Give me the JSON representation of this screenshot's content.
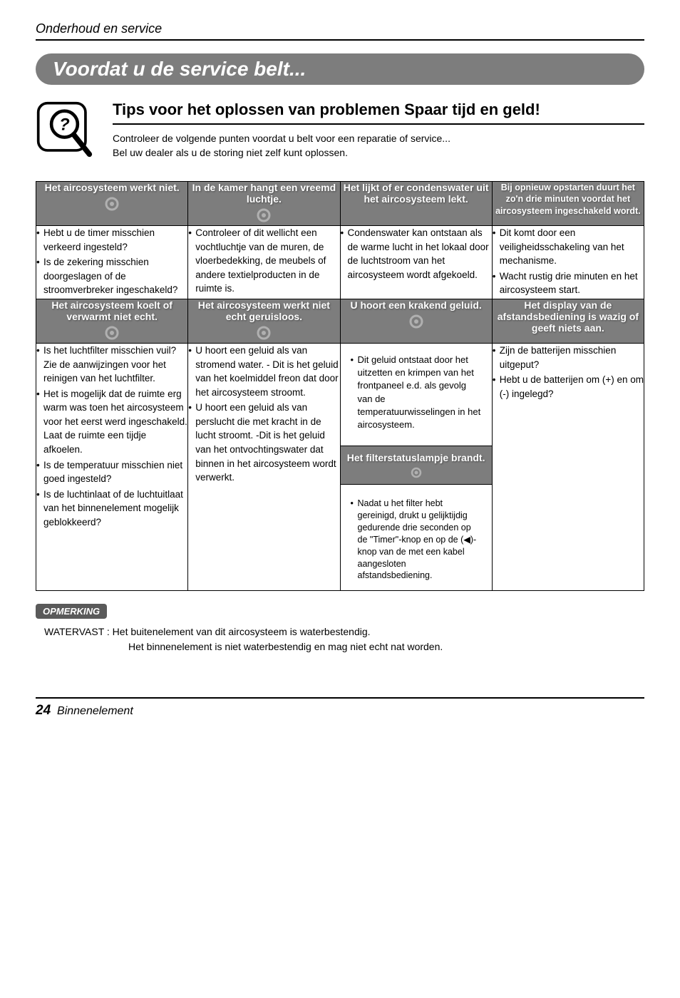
{
  "page_header": "Onderhoud en service",
  "banner": "Voordat u de service belt...",
  "tips_title": "Tips voor het oplossen van problemen Spaar tijd en geld!",
  "tips_desc_l1": "Controleer de volgende punten voordat u belt voor een reparatie of service...",
  "tips_desc_l2": "Bel uw dealer als u de storing niet zelf kunt oplossen.",
  "colors": {
    "header_bg": "#7d7d7d",
    "header_text": "#ffffff",
    "border": "#000000",
    "note_bg": "#5a5a5a"
  },
  "row1_headers": [
    "Het aircosysteem werkt niet.",
    "In de kamer hangt een vreemd luchtje.",
    "Het lijkt of er condenswater uit het aircosysteem lekt.",
    "Bij opnieuw opstarten duurt het zo'n drie minuten voordat het aircosysteem ingeschakeld wordt."
  ],
  "row1_bodies": {
    "c1": [
      "Hebt u de timer misschien verkeerd ingesteld?",
      "Is de zekering misschien doorgeslagen of de stroomverbreker ingeschakeld?"
    ],
    "c2": [
      "Controleer of dit wellicht een vochtluchtje van de muren, de vloerbedekking, de meubels of andere textielproducten in de ruimte is."
    ],
    "c3": [
      "Condenswater kan ontstaan als de warme lucht in het lokaal door de luchtstroom van het aircosysteem wordt afgekoeld."
    ],
    "c4": [
      "Dit komt door een veiligheidsschakeling van het mechanisme.",
      "Wacht rustig drie minuten en het aircosysteem start."
    ]
  },
  "row2_headers": [
    "Het aircosysteem koelt of verwarmt niet echt.",
    "Het aircosysteem werkt niet echt geruisloos.",
    "U hoort een krakend geluid.",
    "Het display van de afstandsbediening is wazig of geeft niets aan."
  ],
  "row2_bodies": {
    "c1": [
      "Is het luchtfilter misschien vuil? Zie de aanwijzingen voor het reinigen van het luchtfilter.",
      "Het is mogelijk dat de ruimte erg warm was toen het aircosysteem voor het eerst werd ingeschakeld. Laat de ruimte een tijdje afkoelen.",
      "Is de temperatuur misschien niet goed ingesteld?",
      "Is de luchtinlaat of de luchtuitlaat van het binnenelement mogelijk geblokkeerd?"
    ],
    "c2": [
      "U hoort een geluid als van stromend water. - Dit is het geluid van het koelmiddel freon dat door het aircosysteem stroomt.",
      "U hoort een geluid als van perslucht die met kracht in de lucht stroomt. -Dit is het geluid van het ontvochtingswater dat binnen in het aircosysteem wordt verwerkt."
    ],
    "c3_top": [
      "Dit geluid ontstaat door het uitzetten en krimpen van het frontpaneel e.d. als gevolg van de temperatuurwisselingen in het aircosysteem."
    ],
    "c3_mid_hdr": "Het filterstatuslampje brandt.",
    "c3_bot": [
      "Nadat u het filter hebt gereinigd, drukt u gelijktijdig gedurende drie seconden op de \"Timer\"-knop en op de (◀)-knop van de met een kabel aangesloten afstandsbediening."
    ],
    "c4": [
      "Zijn de batterijen misschien uitgeput?",
      "Hebt u de batterijen om (+) en om (-) ingelegd?"
    ]
  },
  "note_label": "OPMERKING",
  "note_text_l1": "WATERVAST :  Het buitenelement van dit aircosysteem is waterbestendig.",
  "note_text_l2": "Het binnenelement is niet waterbestendig en mag niet echt nat worden.",
  "footer_page": "24",
  "footer_text": "Binnenelement"
}
